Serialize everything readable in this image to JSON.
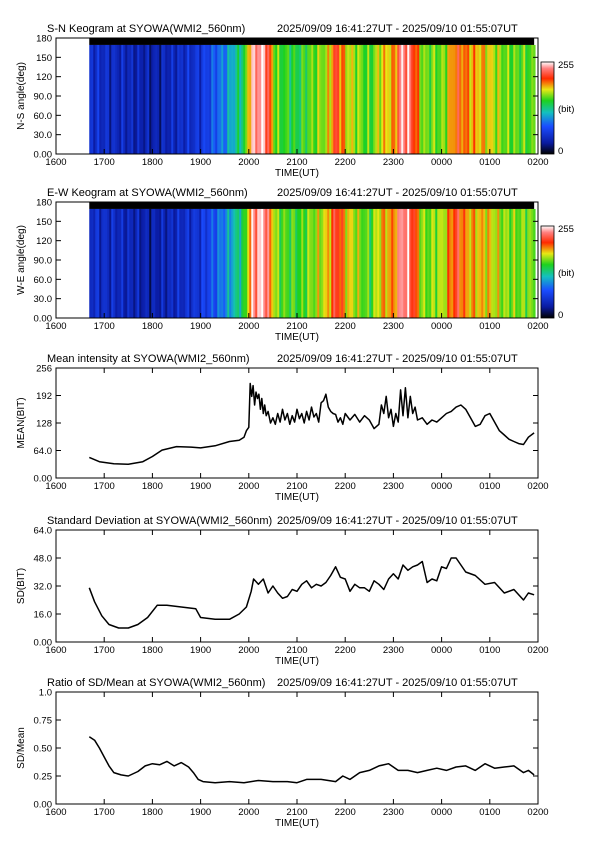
{
  "chart_data": [
    {
      "type": "heatmap",
      "title": "S-N Keogram at SYOWA(WMI2_560nm)",
      "time_range": "2025/09/09 16:41:27UT - 2025/09/10 01:55:07UT",
      "xlabel": "TIME(UT)",
      "ylabel": "N-S angle(deg)",
      "xticks": [
        "1600",
        "1700",
        "1800",
        "1900",
        "2000",
        "2100",
        "2200",
        "2300",
        "0000",
        "0100",
        "0200"
      ],
      "yticks": [
        "0.00",
        "30.0",
        "60.0",
        "90.0",
        "120",
        "150",
        "180"
      ],
      "ylim": [
        0,
        180
      ],
      "colorbar": {
        "min_label": "0",
        "max_label": "255",
        "unit": "(bit)"
      },
      "data_start_hour": 16.69,
      "data_end_hour": 25.92,
      "intensity_profile": [
        [
          16.69,
          0.2
        ],
        [
          18.0,
          0.14
        ],
        [
          19.0,
          0.22
        ],
        [
          19.5,
          0.38
        ],
        [
          19.9,
          0.55
        ],
        [
          20.05,
          0.92
        ],
        [
          20.3,
          0.98
        ],
        [
          20.55,
          0.6
        ],
        [
          21.0,
          0.55
        ],
        [
          21.3,
          0.62
        ],
        [
          21.6,
          0.66
        ],
        [
          21.8,
          0.86
        ],
        [
          22.0,
          0.7
        ],
        [
          22.5,
          0.58
        ],
        [
          22.7,
          0.7
        ],
        [
          23.0,
          0.74
        ],
        [
          23.15,
          0.96
        ],
        [
          23.35,
          0.9
        ],
        [
          23.6,
          0.62
        ],
        [
          24.0,
          0.62
        ],
        [
          24.3,
          0.82
        ],
        [
          24.5,
          0.76
        ],
        [
          24.9,
          0.72
        ],
        [
          25.3,
          0.62
        ],
        [
          25.92,
          0.6
        ]
      ]
    },
    {
      "type": "heatmap",
      "title": "E-W Keogram at SYOWA(WMI2_560nm)",
      "time_range": "2025/09/09 16:41:27UT - 2025/09/10 01:55:07UT",
      "xlabel": "TIME(UT)",
      "ylabel": "W-E angle(deg)",
      "xticks": [
        "1600",
        "1700",
        "1800",
        "1900",
        "2000",
        "2100",
        "2200",
        "2300",
        "0000",
        "0100",
        "0200"
      ],
      "yticks": [
        "0.00",
        "30.0",
        "60.0",
        "90.0",
        "120",
        "150",
        "180"
      ],
      "ylim": [
        0,
        180
      ],
      "colorbar": {
        "min_label": "0",
        "max_label": "255",
        "unit": "(bit)"
      },
      "data_start_hour": 16.69,
      "data_end_hour": 25.92,
      "intensity_profile": [
        [
          16.69,
          0.2
        ],
        [
          18.0,
          0.14
        ],
        [
          19.0,
          0.22
        ],
        [
          19.5,
          0.38
        ],
        [
          19.9,
          0.55
        ],
        [
          20.05,
          0.92
        ],
        [
          20.3,
          0.98
        ],
        [
          20.55,
          0.62
        ],
        [
          21.0,
          0.58
        ],
        [
          21.3,
          0.64
        ],
        [
          21.6,
          0.7
        ],
        [
          21.8,
          0.88
        ],
        [
          22.0,
          0.72
        ],
        [
          22.5,
          0.58
        ],
        [
          22.7,
          0.72
        ],
        [
          23.0,
          0.76
        ],
        [
          23.15,
          0.96
        ],
        [
          23.35,
          0.9
        ],
        [
          23.6,
          0.62
        ],
        [
          24.0,
          0.66
        ],
        [
          24.3,
          0.86
        ],
        [
          24.5,
          0.74
        ],
        [
          24.9,
          0.72
        ],
        [
          25.3,
          0.64
        ],
        [
          25.92,
          0.62
        ]
      ]
    },
    {
      "type": "line",
      "title": "Mean intensity at SYOWA(WMI2_560nm)",
      "time_range": "2025/09/09 16:41:27UT - 2025/09/10 01:55:07UT",
      "xlabel": "TIME(UT)",
      "ylabel": "MEAN(BIT)",
      "xticks": [
        "1600",
        "1700",
        "1800",
        "1900",
        "2000",
        "2100",
        "2200",
        "2300",
        "0000",
        "0100",
        "0200"
      ],
      "yticks": [
        "0.00",
        "64.0",
        "128",
        "192",
        "256"
      ],
      "ylim": [
        0,
        256
      ],
      "x": [
        16.69,
        16.9,
        17.2,
        17.5,
        17.8,
        18.0,
        18.2,
        18.5,
        18.8,
        19.0,
        19.3,
        19.6,
        19.8,
        19.9,
        19.95,
        20.0,
        20.03,
        20.06,
        20.09,
        20.12,
        20.15,
        20.18,
        20.21,
        20.24,
        20.27,
        20.3,
        20.33,
        20.36,
        20.4,
        20.45,
        20.5,
        20.55,
        20.6,
        20.65,
        20.7,
        20.75,
        20.8,
        20.85,
        20.9,
        20.95,
        21.0,
        21.05,
        21.1,
        21.15,
        21.2,
        21.25,
        21.3,
        21.35,
        21.4,
        21.45,
        21.5,
        21.55,
        21.6,
        21.65,
        21.7,
        21.75,
        21.8,
        21.85,
        21.9,
        21.95,
        22.0,
        22.1,
        22.2,
        22.3,
        22.4,
        22.5,
        22.6,
        22.7,
        22.75,
        22.8,
        22.85,
        22.9,
        22.95,
        23.0,
        23.05,
        23.1,
        23.15,
        23.2,
        23.25,
        23.3,
        23.35,
        23.4,
        23.45,
        23.5,
        23.6,
        23.7,
        23.8,
        23.9,
        24.0,
        24.1,
        24.2,
        24.3,
        24.4,
        24.5,
        24.6,
        24.7,
        24.8,
        24.9,
        25.0,
        25.1,
        25.2,
        25.3,
        25.4,
        25.5,
        25.6,
        25.7,
        25.8,
        25.92
      ],
      "values": [
        48,
        38,
        33,
        32,
        38,
        50,
        65,
        73,
        72,
        70,
        75,
        85,
        88,
        95,
        110,
        118,
        220,
        190,
        215,
        170,
        200,
        185,
        195,
        160,
        185,
        150,
        170,
        145,
        155,
        128,
        140,
        125,
        150,
        130,
        160,
        135,
        150,
        125,
        145,
        130,
        160,
        138,
        150,
        128,
        155,
        135,
        165,
        142,
        150,
        130,
        175,
        180,
        195,
        165,
        155,
        150,
        148,
        130,
        140,
        125,
        150,
        135,
        148,
        130,
        145,
        135,
        115,
        125,
        170,
        150,
        190,
        140,
        160,
        120,
        150,
        130,
        205,
        145,
        210,
        140,
        190,
        150,
        165,
        135,
        140,
        125,
        135,
        130,
        140,
        150,
        155,
        165,
        170,
        160,
        140,
        120,
        125,
        145,
        150,
        130,
        110,
        100,
        90,
        85,
        80,
        78,
        95,
        105
      ]
    },
    {
      "type": "line",
      "title": "Standard Deviation at SYOWA(WMI2_560nm)",
      "time_range": "2025/09/09 16:41:27UT - 2025/09/10 01:55:07UT",
      "xlabel": "TIME(UT)",
      "ylabel": "SD(BIT)",
      "xticks": [
        "1600",
        "1700",
        "1800",
        "1900",
        "2000",
        "2100",
        "2200",
        "2300",
        "0000",
        "0100",
        "0200"
      ],
      "yticks": [
        "0.00",
        "16.0",
        "32.0",
        "48.0",
        "64.0"
      ],
      "ylim": [
        0,
        64
      ],
      "x": [
        16.69,
        16.8,
        16.95,
        17.1,
        17.3,
        17.5,
        17.7,
        17.9,
        18.1,
        18.3,
        18.6,
        18.9,
        19.0,
        19.3,
        19.6,
        19.8,
        19.95,
        20.05,
        20.1,
        20.2,
        20.3,
        20.4,
        20.5,
        20.6,
        20.7,
        20.8,
        20.9,
        21.0,
        21.1,
        21.2,
        21.3,
        21.4,
        21.5,
        21.6,
        21.7,
        21.8,
        21.9,
        22.0,
        22.1,
        22.2,
        22.3,
        22.4,
        22.5,
        22.6,
        22.7,
        22.8,
        22.9,
        23.0,
        23.1,
        23.2,
        23.3,
        23.4,
        23.5,
        23.6,
        23.7,
        23.8,
        23.9,
        24.0,
        24.1,
        24.2,
        24.3,
        24.5,
        24.7,
        24.9,
        25.1,
        25.3,
        25.5,
        25.7,
        25.8,
        25.92
      ],
      "values": [
        31,
        23,
        15,
        10,
        8,
        8,
        10,
        14,
        21,
        21,
        20,
        19,
        14,
        13,
        13,
        16,
        20,
        29,
        36,
        33,
        36,
        28,
        32,
        28,
        25,
        26,
        30,
        29,
        33,
        35,
        31,
        33,
        32,
        34,
        38,
        43,
        37,
        36,
        29,
        33,
        31,
        31,
        29,
        35,
        33,
        30,
        36,
        39,
        36,
        44,
        41,
        43,
        44,
        46,
        34,
        36,
        35,
        43,
        42,
        48,
        48,
        40,
        38,
        33,
        34,
        28,
        30,
        24,
        28,
        27
      ]
    },
    {
      "type": "line",
      "title": "Ratio of SD/Mean at SYOWA(WMI2_560nm)",
      "time_range": "2025/09/09 16:41:27UT - 2025/09/10 01:55:07UT",
      "xlabel": "TIME(UT)",
      "ylabel": "SD/Mean",
      "xticks": [
        "1600",
        "1700",
        "1800",
        "1900",
        "2000",
        "2100",
        "2200",
        "2300",
        "0000",
        "0100",
        "0200"
      ],
      "yticks": [
        "0.00",
        "0.25",
        "0.50",
        "0.75",
        "1.0"
      ],
      "ylim": [
        0,
        1.0
      ],
      "x": [
        16.69,
        16.8,
        16.9,
        17.0,
        17.1,
        17.2,
        17.35,
        17.5,
        17.7,
        17.85,
        18.0,
        18.15,
        18.3,
        18.45,
        18.6,
        18.75,
        18.85,
        18.95,
        19.05,
        19.3,
        19.6,
        19.9,
        20.2,
        20.5,
        20.8,
        21.0,
        21.2,
        21.5,
        21.8,
        21.95,
        22.1,
        22.3,
        22.5,
        22.7,
        22.9,
        23.1,
        23.3,
        23.5,
        23.7,
        23.9,
        24.1,
        24.3,
        24.5,
        24.7,
        24.9,
        25.1,
        25.3,
        25.5,
        25.7,
        25.8,
        25.92
      ],
      "values": [
        0.6,
        0.57,
        0.5,
        0.42,
        0.34,
        0.28,
        0.26,
        0.25,
        0.29,
        0.34,
        0.36,
        0.35,
        0.38,
        0.34,
        0.37,
        0.33,
        0.28,
        0.22,
        0.2,
        0.19,
        0.2,
        0.19,
        0.21,
        0.2,
        0.2,
        0.19,
        0.22,
        0.22,
        0.2,
        0.25,
        0.22,
        0.28,
        0.3,
        0.34,
        0.36,
        0.3,
        0.3,
        0.28,
        0.3,
        0.32,
        0.3,
        0.33,
        0.34,
        0.3,
        0.36,
        0.32,
        0.33,
        0.34,
        0.28,
        0.3,
        0.26
      ]
    }
  ]
}
